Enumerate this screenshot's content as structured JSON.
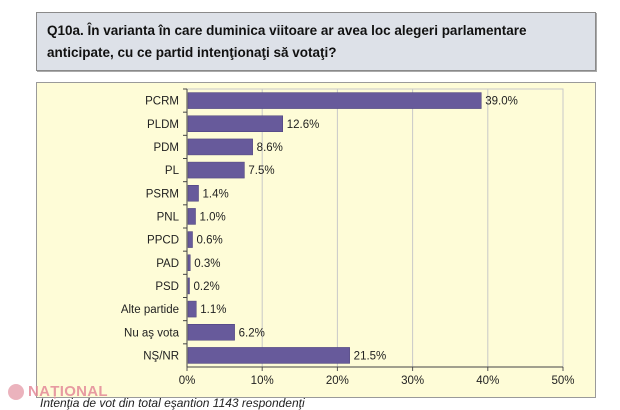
{
  "header": {
    "question": "Q10a. În varianta în care duminica viitoare ar avea loc alegeri parlamentare anticipate, cu ce partid intenţionaţi să votaţi?"
  },
  "chart_data": {
    "type": "bar",
    "orientation": "horizontal",
    "categories": [
      "PCRM",
      "PLDM",
      "PDM",
      "PL",
      "PSRM",
      "PNL",
      "PPCD",
      "PAD",
      "PSD",
      "Alte partide",
      "Nu aş vota",
      "NŞ/NR"
    ],
    "values": [
      39.0,
      12.6,
      8.6,
      7.5,
      1.4,
      1.0,
      0.6,
      0.3,
      0.2,
      1.1,
      6.2,
      21.5
    ],
    "data_labels": [
      "39.0%",
      "12.6%",
      "8.6%",
      "7.5%",
      "1.4%",
      "1.0%",
      "0.6%",
      "0.3%",
      "0.2%",
      "1.1%",
      "6.2%",
      "21.5%"
    ],
    "xlim": [
      0,
      50
    ],
    "xticks": [
      "0%",
      "10%",
      "20%",
      "30%",
      "40%",
      "50%"
    ],
    "grid": true,
    "bar_color": "#675a9b",
    "background": "#fefcd7"
  },
  "footer": {
    "note": "Intenţia de vot din total eşantion 1143 respondenţi"
  },
  "watermark": {
    "text": "NAȚIONAL"
  }
}
